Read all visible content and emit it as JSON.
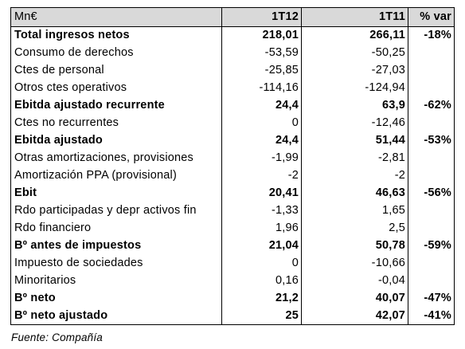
{
  "table": {
    "headers": [
      "Mn€",
      "1T12",
      "1T11",
      "% var"
    ],
    "rows": [
      {
        "label": "Total ingresos netos",
        "v1": "218,01",
        "v2": "266,11",
        "var": "-18%",
        "bold": true
      },
      {
        "label": "Consumo de derechos",
        "v1": "-53,59",
        "v2": "-50,25",
        "var": "",
        "bold": false
      },
      {
        "label": "Ctes de personal",
        "v1": "-25,85",
        "v2": "-27,03",
        "var": "",
        "bold": false
      },
      {
        "label": "Otros ctes operativos",
        "v1": "-114,16",
        "v2": "-124,94",
        "var": "",
        "bold": false
      },
      {
        "label": "Ebitda ajustado recurrente",
        "v1": "24,4",
        "v2": "63,9",
        "var": "-62%",
        "bold": true
      },
      {
        "label": "Ctes no recurrentes",
        "v1": "0",
        "v2": "-12,46",
        "var": "",
        "bold": false
      },
      {
        "label": "Ebitda ajustado",
        "v1": "24,4",
        "v2": "51,44",
        "var": "-53%",
        "bold": true
      },
      {
        "label": "Otras amortizaciones, provisiones",
        "v1": "-1,99",
        "v2": "-2,81",
        "var": "",
        "bold": false
      },
      {
        "label": "Amortización PPA (provisional)",
        "v1": "-2",
        "v2": "-2",
        "var": "",
        "bold": false
      },
      {
        "label": "Ebit",
        "v1": "20,41",
        "v2": "46,63",
        "var": "-56%",
        "bold": true
      },
      {
        "label": "Rdo participadas y depr activos fin",
        "v1": "-1,33",
        "v2": "1,65",
        "var": "",
        "bold": false
      },
      {
        "label": "Rdo financiero",
        "v1": "1,96",
        "v2": "2,5",
        "var": "",
        "bold": false
      },
      {
        "label": "Bº antes de impuestos",
        "v1": "21,04",
        "v2": "50,78",
        "var": "-59%",
        "bold": true
      },
      {
        "label": "Impuesto de sociedades",
        "v1": "0",
        "v2": "-10,66",
        "var": "",
        "bold": false
      },
      {
        "label": "Minoritarios",
        "v1": "0,16",
        "v2": "-0,04",
        "var": "",
        "bold": false
      },
      {
        "label": "Bº neto",
        "v1": "21,2",
        "v2": "40,07",
        "var": "-47%",
        "bold": true
      },
      {
        "label": "Bº neto ajustado",
        "v1": "25",
        "v2": "42,07",
        "var": "-41%",
        "bold": true
      }
    ]
  },
  "source": "Fuente: Compañía"
}
